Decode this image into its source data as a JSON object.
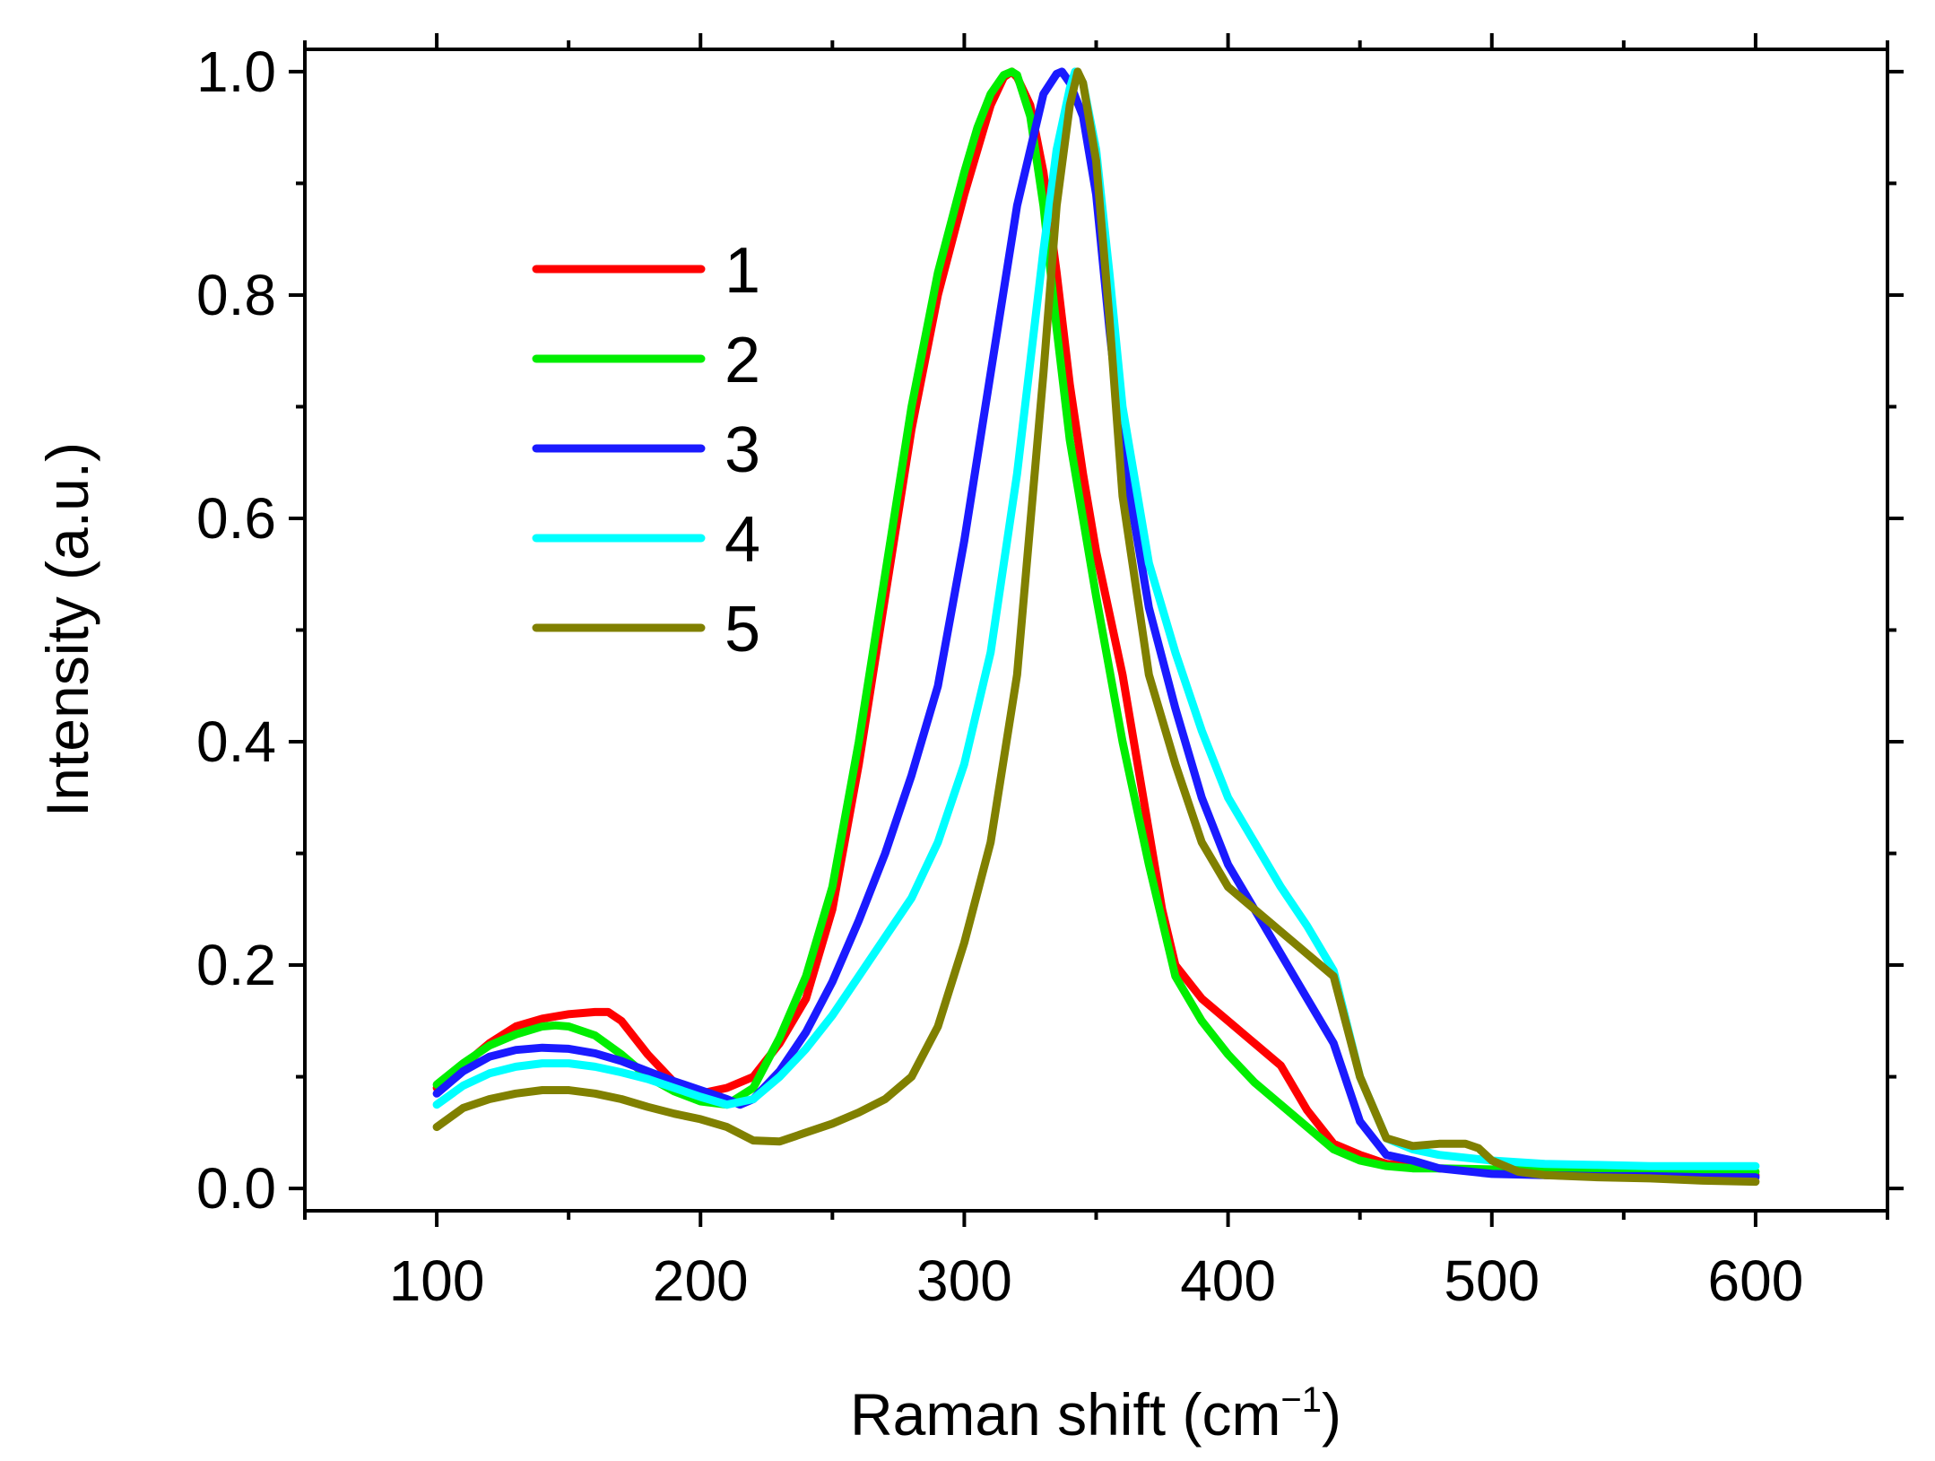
{
  "chart_data": {
    "type": "line",
    "title": "",
    "xlabel_main": "Raman shift (cm",
    "xlabel_sup": "−1",
    "xlabel_end": ")",
    "ylabel": "Intensity (a.u.)",
    "xlim": [
      50,
      650
    ],
    "ylim": [
      -0.02,
      1.02
    ],
    "xticks": [
      100,
      200,
      300,
      400,
      500,
      600
    ],
    "yticks": [
      0.0,
      0.2,
      0.4,
      0.6,
      0.8,
      1.0
    ],
    "ytick_labels": [
      "0.0",
      "0.2",
      "0.4",
      "0.6",
      "0.8",
      "1.0"
    ],
    "grid": false,
    "legend_position": "upper-left",
    "series": [
      {
        "name": "1",
        "color": "#ff0000",
        "x": [
          100,
          110,
          120,
          130,
          140,
          150,
          160,
          165,
          170,
          180,
          190,
          200,
          210,
          220,
          230,
          240,
          250,
          260,
          270,
          280,
          290,
          300,
          305,
          310,
          315,
          318,
          320,
          325,
          330,
          335,
          340,
          345,
          350,
          360,
          370,
          375,
          380,
          390,
          400,
          410,
          420,
          430,
          440,
          450,
          460,
          470,
          480,
          500,
          520,
          540,
          560,
          580,
          600
        ],
        "y": [
          0.09,
          0.11,
          0.13,
          0.145,
          0.152,
          0.156,
          0.158,
          0.158,
          0.15,
          0.12,
          0.095,
          0.085,
          0.09,
          0.1,
          0.13,
          0.17,
          0.25,
          0.38,
          0.53,
          0.68,
          0.8,
          0.89,
          0.93,
          0.97,
          0.995,
          1.0,
          0.995,
          0.97,
          0.91,
          0.82,
          0.72,
          0.64,
          0.57,
          0.46,
          0.32,
          0.25,
          0.2,
          0.17,
          0.15,
          0.13,
          0.11,
          0.07,
          0.04,
          0.03,
          0.022,
          0.02,
          0.018,
          0.016,
          0.015,
          0.014,
          0.013,
          0.012,
          0.012
        ]
      },
      {
        "name": "2",
        "color": "#00ee00",
        "x": [
          100,
          110,
          120,
          130,
          140,
          145,
          150,
          160,
          170,
          180,
          190,
          200,
          210,
          220,
          230,
          240,
          250,
          260,
          270,
          280,
          290,
          300,
          305,
          310,
          315,
          318,
          320,
          325,
          330,
          335,
          340,
          345,
          350,
          360,
          370,
          380,
          390,
          400,
          410,
          420,
          430,
          440,
          450,
          460,
          470,
          480,
          500,
          520,
          540,
          560,
          580,
          600
        ],
        "y": [
          0.093,
          0.112,
          0.128,
          0.138,
          0.145,
          0.146,
          0.145,
          0.137,
          0.12,
          0.1,
          0.087,
          0.078,
          0.075,
          0.09,
          0.135,
          0.19,
          0.27,
          0.4,
          0.55,
          0.7,
          0.82,
          0.91,
          0.95,
          0.98,
          0.997,
          1.0,
          0.997,
          0.96,
          0.88,
          0.77,
          0.67,
          0.6,
          0.53,
          0.4,
          0.29,
          0.19,
          0.15,
          0.12,
          0.095,
          0.075,
          0.055,
          0.035,
          0.025,
          0.02,
          0.018,
          0.018,
          0.017,
          0.017,
          0.016,
          0.016,
          0.016,
          0.015
        ]
      },
      {
        "name": "3",
        "color": "#1a1aff",
        "x": [
          100,
          110,
          120,
          130,
          140,
          150,
          160,
          170,
          180,
          190,
          200,
          210,
          215,
          220,
          230,
          240,
          250,
          260,
          270,
          280,
          290,
          300,
          310,
          320,
          325,
          330,
          335,
          337,
          340,
          345,
          350,
          355,
          360,
          370,
          380,
          390,
          400,
          410,
          420,
          430,
          440,
          450,
          460,
          470,
          480,
          500,
          520,
          540,
          560,
          580,
          600
        ],
        "y": [
          0.085,
          0.105,
          0.118,
          0.124,
          0.126,
          0.125,
          0.121,
          0.114,
          0.105,
          0.096,
          0.088,
          0.08,
          0.075,
          0.08,
          0.105,
          0.14,
          0.185,
          0.24,
          0.3,
          0.37,
          0.45,
          0.58,
          0.73,
          0.88,
          0.93,
          0.98,
          0.998,
          1.0,
          0.99,
          0.96,
          0.89,
          0.77,
          0.66,
          0.52,
          0.43,
          0.35,
          0.29,
          0.25,
          0.21,
          0.17,
          0.13,
          0.06,
          0.03,
          0.025,
          0.018,
          0.013,
          0.012,
          0.011,
          0.011,
          0.01,
          0.01
        ]
      },
      {
        "name": "4",
        "color": "#00ffff",
        "x": [
          100,
          110,
          120,
          130,
          140,
          150,
          160,
          170,
          180,
          190,
          200,
          210,
          220,
          230,
          240,
          250,
          260,
          270,
          280,
          290,
          300,
          310,
          320,
          330,
          335,
          340,
          342,
          345,
          350,
          355,
          360,
          370,
          380,
          390,
          400,
          410,
          420,
          430,
          440,
          450,
          460,
          470,
          480,
          500,
          520,
          540,
          560,
          580,
          600
        ],
        "y": [
          0.075,
          0.092,
          0.103,
          0.109,
          0.112,
          0.112,
          0.109,
          0.104,
          0.098,
          0.09,
          0.082,
          0.075,
          0.08,
          0.1,
          0.125,
          0.155,
          0.19,
          0.225,
          0.26,
          0.31,
          0.38,
          0.48,
          0.64,
          0.84,
          0.93,
          0.985,
          1.0,
          0.99,
          0.93,
          0.82,
          0.7,
          0.56,
          0.48,
          0.41,
          0.35,
          0.31,
          0.27,
          0.235,
          0.195,
          0.1,
          0.045,
          0.035,
          0.03,
          0.025,
          0.022,
          0.021,
          0.02,
          0.02,
          0.02
        ]
      },
      {
        "name": "5",
        "color": "#808000",
        "x": [
          100,
          110,
          120,
          130,
          140,
          150,
          160,
          170,
          180,
          190,
          200,
          210,
          220,
          230,
          240,
          250,
          260,
          270,
          280,
          290,
          300,
          310,
          320,
          330,
          335,
          340,
          343,
          345,
          350,
          355,
          360,
          370,
          380,
          390,
          400,
          410,
          420,
          430,
          440,
          450,
          460,
          470,
          480,
          490,
          495,
          500,
          510,
          520,
          540,
          560,
          580,
          600
        ],
        "y": [
          0.055,
          0.072,
          0.08,
          0.085,
          0.088,
          0.088,
          0.085,
          0.08,
          0.073,
          0.067,
          0.062,
          0.055,
          0.043,
          0.042,
          0.05,
          0.058,
          0.068,
          0.08,
          0.1,
          0.145,
          0.22,
          0.31,
          0.46,
          0.73,
          0.88,
          0.97,
          1.0,
          0.99,
          0.92,
          0.78,
          0.62,
          0.46,
          0.38,
          0.31,
          0.27,
          0.25,
          0.23,
          0.21,
          0.19,
          0.1,
          0.045,
          0.038,
          0.04,
          0.04,
          0.036,
          0.025,
          0.015,
          0.012,
          0.01,
          0.009,
          0.007,
          0.006
        ]
      }
    ]
  }
}
